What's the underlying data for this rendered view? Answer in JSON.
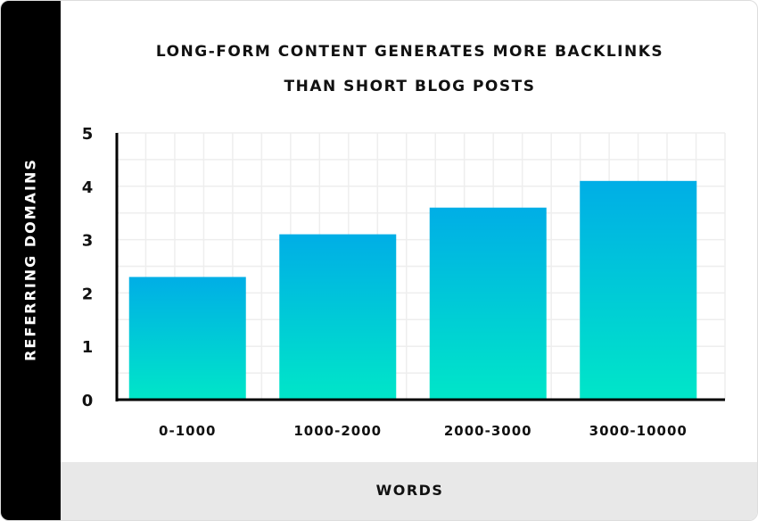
{
  "chart_data": {
    "type": "bar",
    "title_lines": [
      "LONG-FORM CONTENT GENERATES MORE BACKLINKS",
      "THAN SHORT BLOG POSTS"
    ],
    "xlabel": "WORDS",
    "ylabel": "REFERRING DOMAINS",
    "categories": [
      "0-1000",
      "1000-2000",
      "2000-3000",
      "3000-10000"
    ],
    "values": [
      2.3,
      3.1,
      3.6,
      4.1
    ],
    "ylim": [
      0,
      5
    ],
    "yticks": [
      0,
      1,
      2,
      3,
      4,
      5
    ],
    "grid": true,
    "colors": {
      "bar_top": "#00aee6",
      "bar_bottom": "#00e6c8",
      "axis": "#000000",
      "grid": "#eeeeee"
    }
  }
}
